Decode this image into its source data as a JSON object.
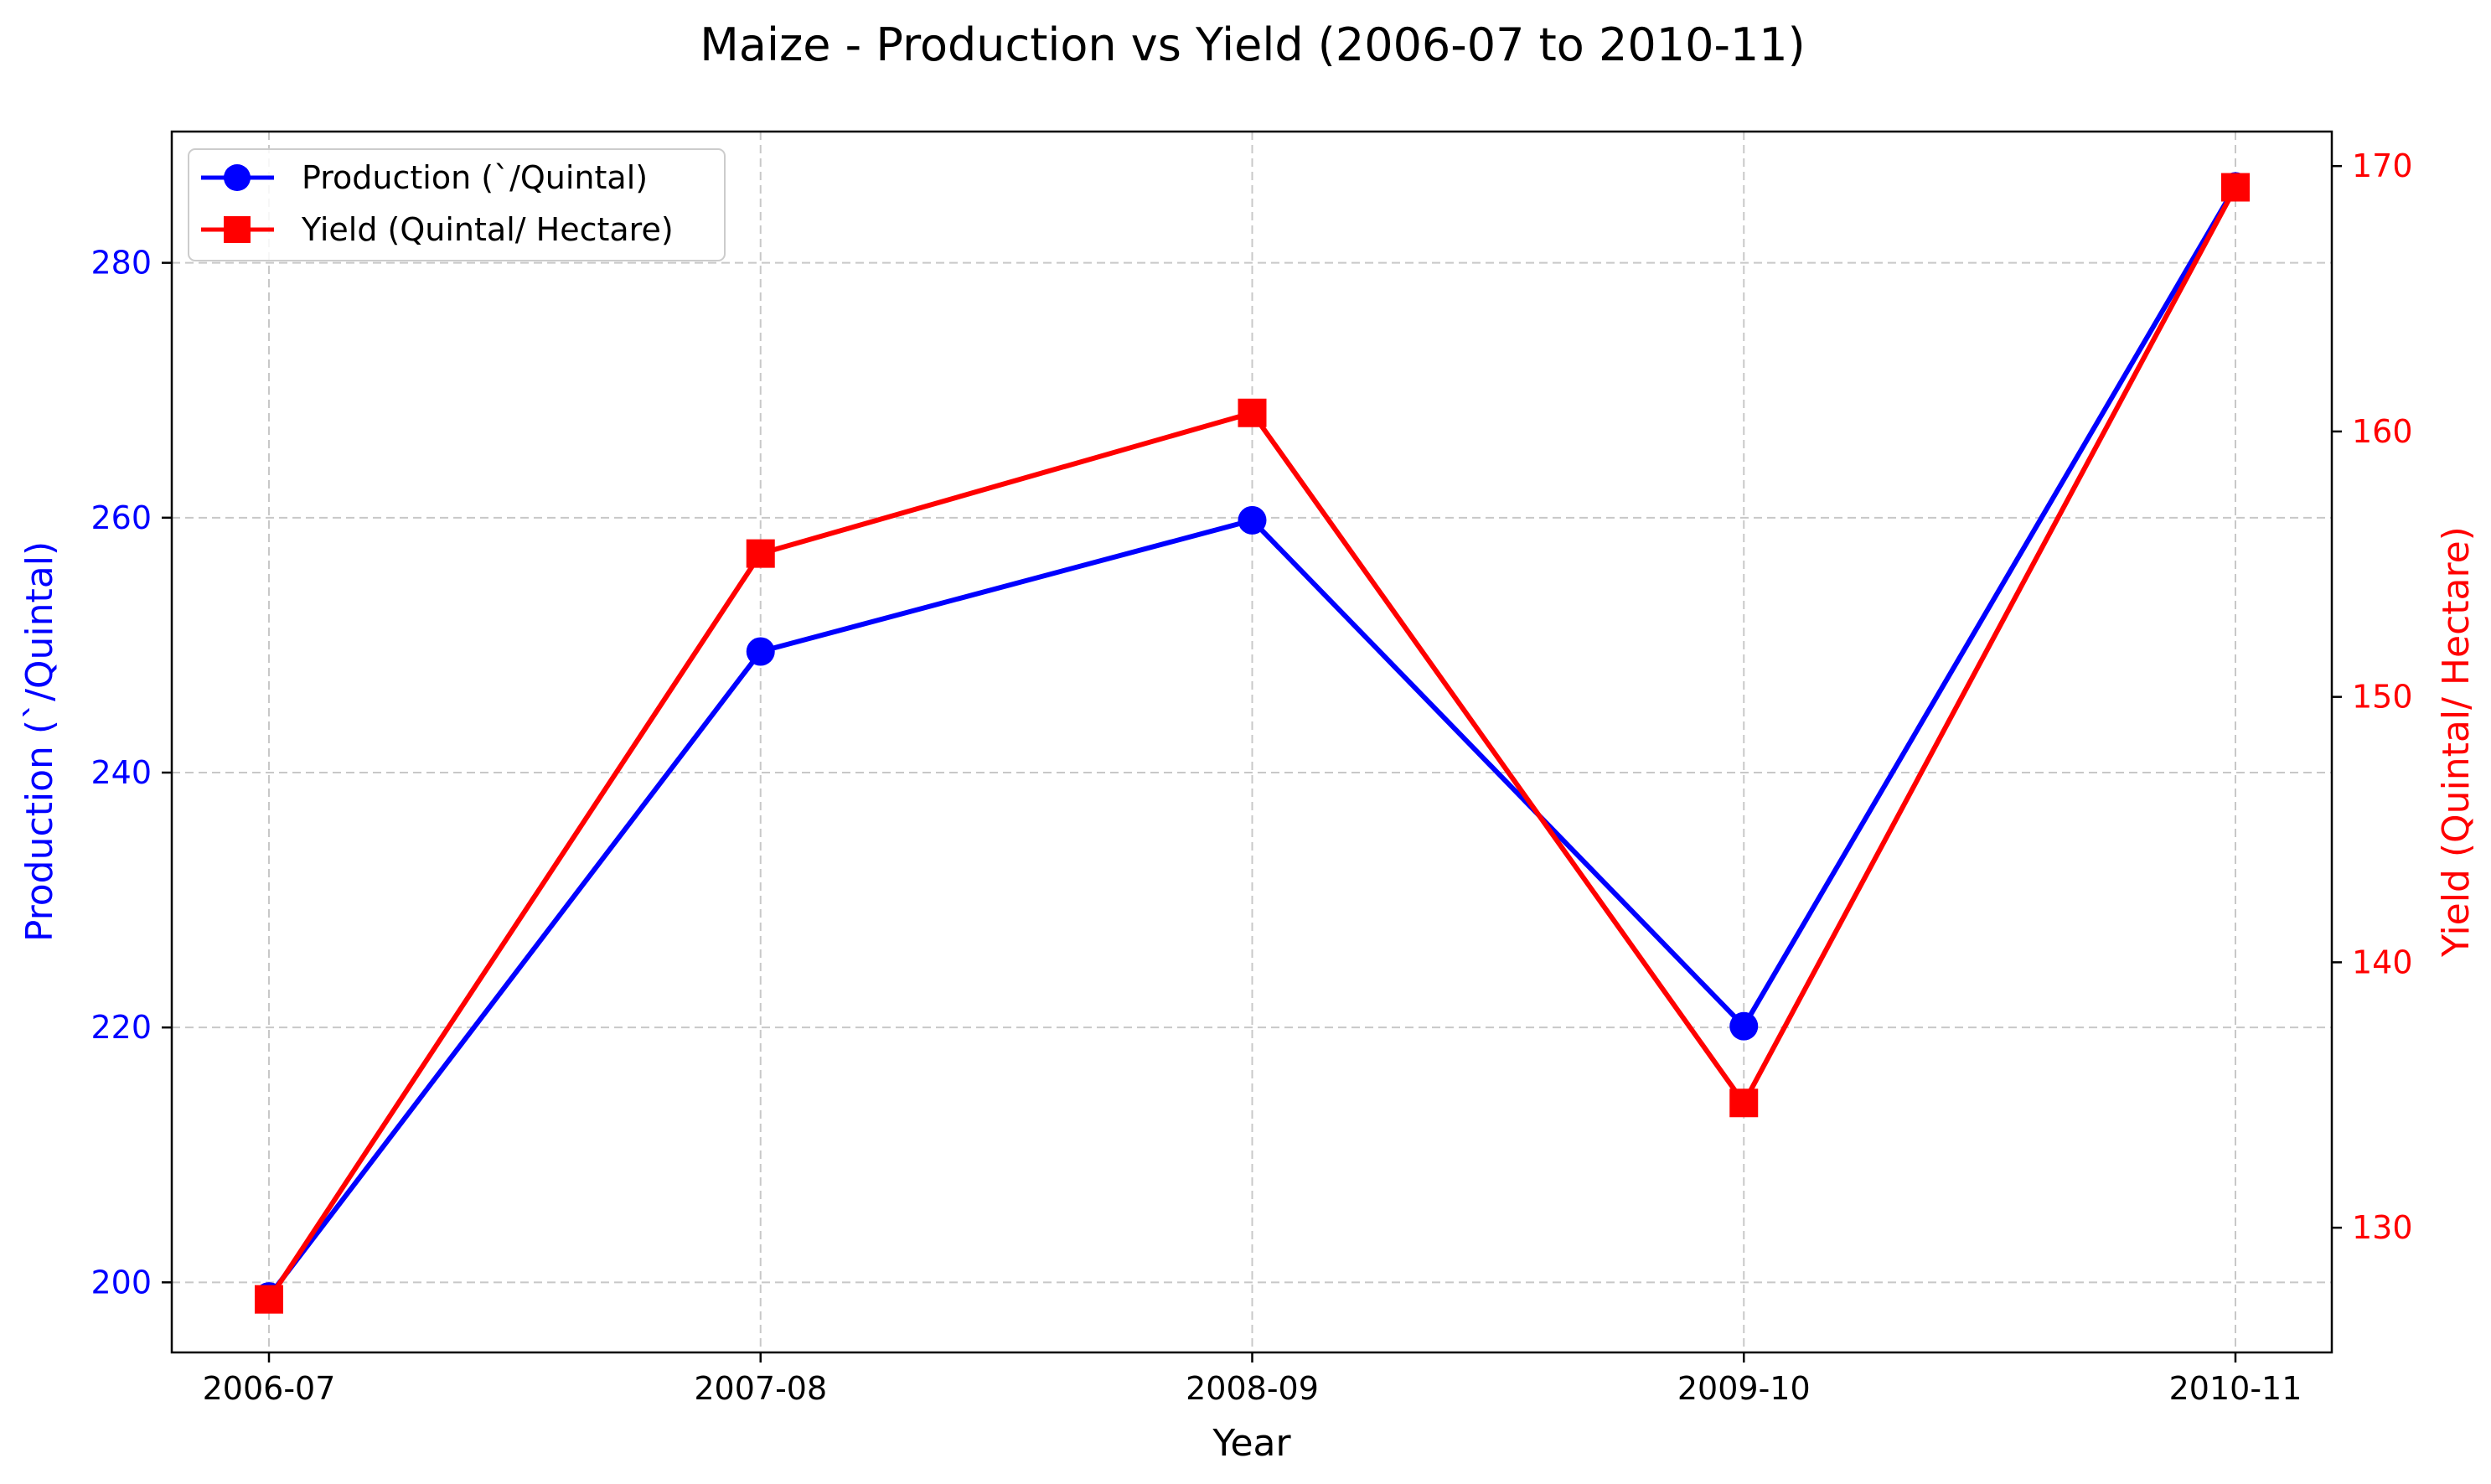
{
  "chart_data": {
    "type": "line",
    "title": "Maize - Production vs Yield (2006-07 to 2010-11)",
    "xlabel": "Year",
    "categories": [
      "2006-07",
      "2007-08",
      "2008-09",
      "2009-10",
      "2010-11"
    ],
    "grid": true,
    "legend_position": "top-left",
    "axes": {
      "left": {
        "label": "Production (`/Quintal)",
        "ylim": [
          194.5,
          290.3
        ],
        "ticks": [
          200,
          220,
          240,
          260,
          280
        ],
        "color": "#0000ff"
      },
      "right": {
        "label": "Yield (Quintal/ Hectare)",
        "ylim": [
          125.3,
          171.3
        ],
        "ticks": [
          130,
          140,
          150,
          160,
          170
        ],
        "color": "#ff0000"
      }
    },
    "series": [
      {
        "name": "Production (`/Quintal)",
        "axis": "left",
        "values": [
          198.9,
          249.5,
          259.8,
          220.1,
          286.0
        ],
        "color": "#0000ff",
        "marker": "circle"
      },
      {
        "name": "Yield (Quintal/ Hectare)",
        "axis": "right",
        "values": [
          127.3,
          155.4,
          160.7,
          134.7,
          169.2
        ],
        "color": "#ff0000",
        "marker": "square"
      }
    ]
  }
}
